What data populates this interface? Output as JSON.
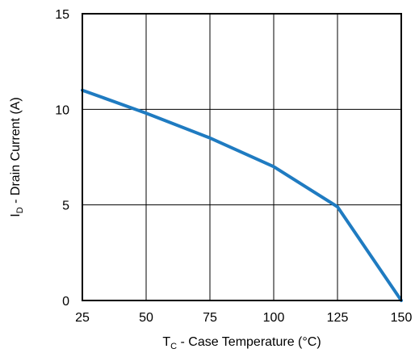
{
  "chart_data": {
    "type": "line",
    "title": "",
    "xlabel": {
      "main": "T",
      "sub": "C",
      "rest": " - Case Temperature (°C)"
    },
    "ylabel": {
      "main": "I",
      "sub": "D",
      "rest": " - Drain Current (A)"
    },
    "xlim": [
      25,
      150
    ],
    "ylim": [
      0,
      15
    ],
    "x_ticks": [
      25,
      50,
      75,
      100,
      125,
      150
    ],
    "y_ticks": [
      0,
      5,
      10,
      15
    ],
    "x_tick_labels": [
      "25",
      "50",
      "75",
      "100",
      "125",
      "150"
    ],
    "y_tick_labels": [
      "0",
      "5",
      "10",
      "15"
    ],
    "grid": true,
    "legend": "none",
    "series": [
      {
        "color": "#1f7bc1",
        "x": [
          25,
          50,
          75,
          100,
          125,
          150
        ],
        "y": [
          11.0,
          9.8,
          8.5,
          7.0,
          4.9,
          0.0
        ]
      }
    ]
  }
}
